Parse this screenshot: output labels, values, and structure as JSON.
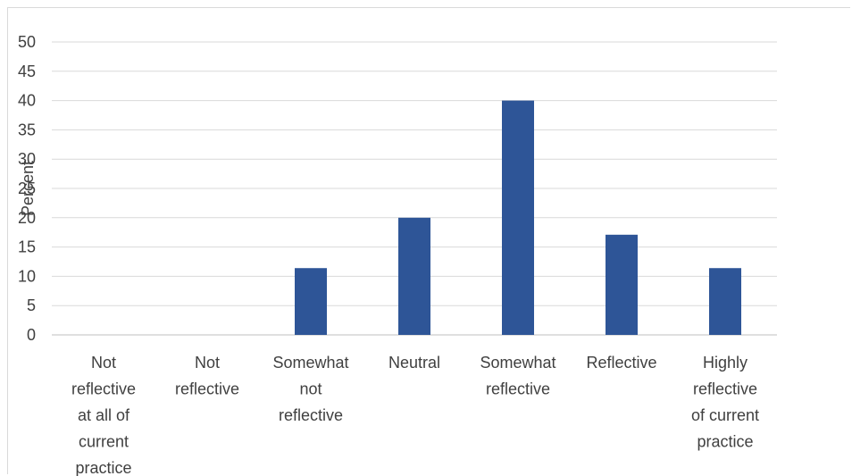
{
  "chart_data": {
    "type": "bar",
    "title": "",
    "xlabel": "",
    "ylabel": "Percent",
    "ylim": [
      0,
      50
    ],
    "yticks": [
      0,
      5,
      10,
      15,
      20,
      25,
      30,
      35,
      40,
      45,
      50
    ],
    "grid": true,
    "legend": "none",
    "bar_color": "#2e5597",
    "categories": [
      [
        "Not",
        "reflective",
        "at all of",
        "current",
        "practice"
      ],
      [
        "Not",
        "reflective"
      ],
      [
        "Somewhat",
        "not",
        "reflective"
      ],
      [
        "Neutral"
      ],
      [
        "Somewhat",
        "reflective"
      ],
      [
        "Reflective"
      ],
      [
        "Highly",
        "reflective",
        "of current",
        "practice"
      ]
    ],
    "values": [
      0,
      0,
      11.4,
      20,
      40,
      17.1,
      11.4
    ]
  }
}
